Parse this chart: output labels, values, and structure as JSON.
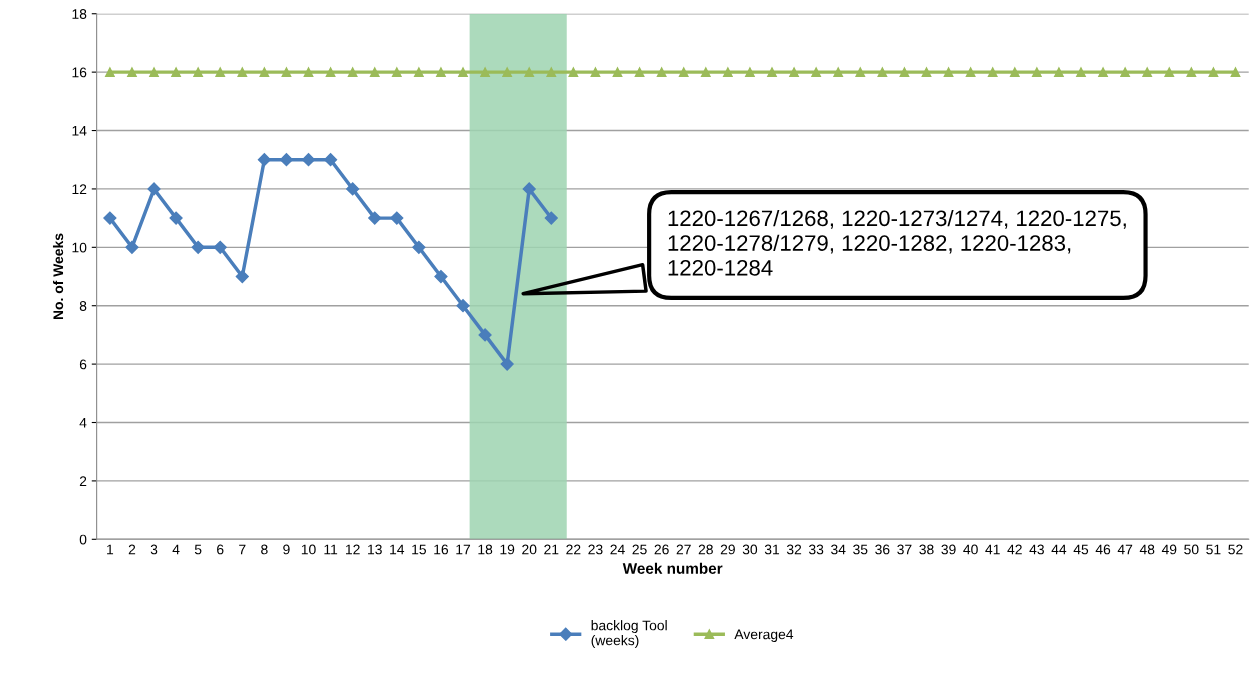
{
  "chart_data": {
    "type": "line",
    "xlabel": "Week number",
    "ylabel": "No. of Weeks",
    "categories": [
      "1",
      "2",
      "3",
      "4",
      "5",
      "6",
      "7",
      "8",
      "9",
      "10",
      "11",
      "12",
      "13",
      "14",
      "15",
      "16",
      "17",
      "18",
      "19",
      "20",
      "21",
      "22",
      "23",
      "24",
      "25",
      "26",
      "27",
      "28",
      "29",
      "30",
      "31",
      "32",
      "33",
      "34",
      "35",
      "36",
      "37",
      "38",
      "39",
      "40",
      "41",
      "42",
      "43",
      "44",
      "45",
      "46",
      "47",
      "48",
      "49",
      "50",
      "51",
      "52"
    ],
    "series": [
      {
        "name": "backlog Tool\n(weeks)",
        "color": "#4a7ebb",
        "marker": "diamond",
        "values": [
          11,
          10,
          12,
          11,
          10,
          10,
          9,
          13,
          13,
          13,
          13,
          12,
          11,
          11,
          10,
          9,
          8,
          7,
          6,
          12,
          11,
          null,
          null,
          null,
          null,
          null,
          null,
          null,
          null,
          null,
          null,
          null,
          null,
          null,
          null,
          null,
          null,
          null,
          null,
          null,
          null,
          null,
          null,
          null,
          null,
          null,
          null,
          null,
          null,
          null,
          null,
          null
        ]
      },
      {
        "name": "Average4",
        "color": "#9bbb59",
        "marker": "triangle",
        "values": [
          16,
          16,
          16,
          16,
          16,
          16,
          16,
          16,
          16,
          16,
          16,
          16,
          16,
          16,
          16,
          16,
          16,
          16,
          16,
          16,
          16,
          16,
          16,
          16,
          16,
          16,
          16,
          16,
          16,
          16,
          16,
          16,
          16,
          16,
          16,
          16,
          16,
          16,
          16,
          16,
          16,
          16,
          16,
          16,
          16,
          16,
          16,
          16,
          16,
          16,
          16,
          16
        ]
      }
    ],
    "ylim": [
      0,
      18
    ],
    "yticks": [
      0,
      2,
      4,
      6,
      8,
      10,
      12,
      14,
      16,
      18
    ],
    "grid": "y",
    "legend": "bottom",
    "bands": [
      {
        "axis": "x",
        "from": "18",
        "to": "21",
        "color": "#9dd4b0"
      }
    ],
    "annotations": [
      "1220-1267/1268, 1220-1273/1274, 1220-1275, 1220-1278/1279, 1220-1282, 1220-1283, 1220-1284"
    ]
  }
}
